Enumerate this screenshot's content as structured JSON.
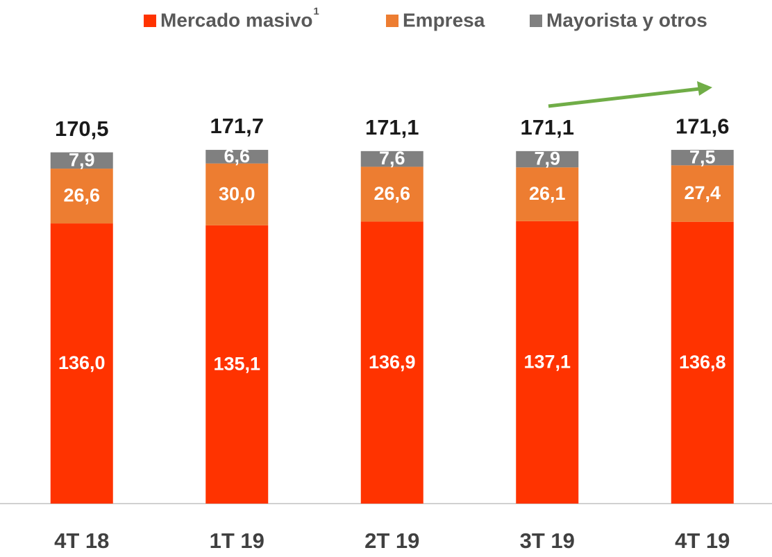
{
  "chart_data": {
    "type": "stacked_bar",
    "categories": [
      "4T 18",
      "1T 19",
      "2T 19",
      "3T 19",
      "4T 19"
    ],
    "series": [
      {
        "name": "Mercado masivo",
        "note": "1",
        "color": "#ff3300",
        "values": [
          136.0,
          135.1,
          136.9,
          137.1,
          136.8
        ],
        "value_labels": [
          "136,0",
          "135,1",
          "136,9",
          "137,1",
          "136,8"
        ]
      },
      {
        "name": "Empresa",
        "color": "#ed7d31",
        "values": [
          26.6,
          30.0,
          26.6,
          26.1,
          27.4
        ],
        "value_labels": [
          "26,6",
          "30,0",
          "26,6",
          "26,1",
          "27,4"
        ]
      },
      {
        "name": "Mayorista y otros",
        "color": "#808080",
        "values": [
          7.9,
          6.6,
          7.6,
          7.9,
          7.5
        ],
        "value_labels": [
          "7,9",
          "6,6",
          "7,6",
          "7,9",
          "7,5"
        ]
      }
    ],
    "totals": [
      170.5,
      171.7,
      171.1,
      171.1,
      171.6
    ],
    "total_labels": [
      "170,5",
      "171,7",
      "171,1",
      "171,1",
      "171,6"
    ],
    "ylim": [
      0,
      200
    ],
    "legend": "top-right"
  }
}
